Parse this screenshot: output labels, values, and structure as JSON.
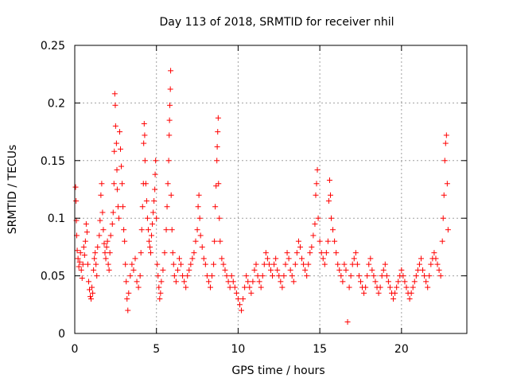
{
  "chart_data": {
    "type": "scatter",
    "title": "Day 113 of 2018, SRMTID for receiver nhil",
    "xlabel": "GPS time / hours",
    "ylabel": "SRMTID / TECUs",
    "xlim": [
      0,
      24
    ],
    "ylim": [
      0,
      0.25
    ],
    "x_ticks": [
      0,
      5,
      10,
      15,
      20
    ],
    "x_tick_labels": [
      "0",
      "5",
      "10",
      "15",
      "20"
    ],
    "y_ticks": [
      0,
      0.05,
      0.1,
      0.15,
      0.2,
      0.25
    ],
    "y_tick_labels": [
      "0",
      "0.05",
      "0.1",
      "0.15",
      "0.2",
      "0.25"
    ],
    "grid": true,
    "marker": "plus",
    "series": [
      {
        "name": "SRMTID",
        "color": "#ff0000",
        "points": [
          [
            0.05,
            0.127
          ],
          [
            0.08,
            0.115
          ],
          [
            0.1,
            0.098
          ],
          [
            0.12,
            0.085
          ],
          [
            0.15,
            0.072
          ],
          [
            0.2,
            0.065
          ],
          [
            0.25,
            0.058
          ],
          [
            0.3,
            0.062
          ],
          [
            0.35,
            0.07
          ],
          [
            0.4,
            0.055
          ],
          [
            0.45,
            0.048
          ],
          [
            0.5,
            0.06
          ],
          [
            0.55,
            0.075
          ],
          [
            0.6,
            0.068
          ],
          [
            0.65,
            0.08
          ],
          [
            0.7,
            0.095
          ],
          [
            0.75,
            0.088
          ],
          [
            0.8,
            0.06
          ],
          [
            0.85,
            0.045
          ],
          [
            0.9,
            0.038
          ],
          [
            0.95,
            0.032
          ],
          [
            1.0,
            0.03
          ],
          [
            1.05,
            0.04
          ],
          [
            1.1,
            0.035
          ],
          [
            1.15,
            0.055
          ],
          [
            1.2,
            0.065
          ],
          [
            1.25,
            0.07
          ],
          [
            1.3,
            0.06
          ],
          [
            1.35,
            0.05
          ],
          [
            1.4,
            0.075
          ],
          [
            1.5,
            0.085
          ],
          [
            1.55,
            0.098
          ],
          [
            1.6,
            0.12
          ],
          [
            1.65,
            0.13
          ],
          [
            1.7,
            0.105
          ],
          [
            1.75,
            0.09
          ],
          [
            1.8,
            0.078
          ],
          [
            1.85,
            0.07
          ],
          [
            1.9,
            0.065
          ],
          [
            1.95,
            0.075
          ],
          [
            2.0,
            0.08
          ],
          [
            2.05,
            0.06
          ],
          [
            2.1,
            0.055
          ],
          [
            2.15,
            0.07
          ],
          [
            2.2,
            0.085
          ],
          [
            2.3,
            0.095
          ],
          [
            2.35,
            0.105
          ],
          [
            2.4,
            0.13
          ],
          [
            2.42,
            0.158
          ],
          [
            2.45,
            0.208
          ],
          [
            2.48,
            0.198
          ],
          [
            2.5,
            0.18
          ],
          [
            2.55,
            0.165
          ],
          [
            2.58,
            0.142
          ],
          [
            2.6,
            0.125
          ],
          [
            2.65,
            0.11
          ],
          [
            2.7,
            0.1
          ],
          [
            2.75,
            0.175
          ],
          [
            2.8,
            0.16
          ],
          [
            2.85,
            0.145
          ],
          [
            2.9,
            0.13
          ],
          [
            2.95,
            0.11
          ],
          [
            3.0,
            0.09
          ],
          [
            3.05,
            0.08
          ],
          [
            3.1,
            0.06
          ],
          [
            3.15,
            0.045
          ],
          [
            3.2,
            0.03
          ],
          [
            3.25,
            0.02
          ],
          [
            3.3,
            0.035
          ],
          [
            3.4,
            0.05
          ],
          [
            3.5,
            0.06
          ],
          [
            3.6,
            0.055
          ],
          [
            3.7,
            0.065
          ],
          [
            3.8,
            0.045
          ],
          [
            3.9,
            0.04
          ],
          [
            4.0,
            0.05
          ],
          [
            4.05,
            0.07
          ],
          [
            4.1,
            0.09
          ],
          [
            4.15,
            0.11
          ],
          [
            4.2,
            0.13
          ],
          [
            4.22,
            0.165
          ],
          [
            4.25,
            0.182
          ],
          [
            4.28,
            0.172
          ],
          [
            4.3,
            0.15
          ],
          [
            4.35,
            0.13
          ],
          [
            4.4,
            0.115
          ],
          [
            4.45,
            0.1
          ],
          [
            4.5,
            0.09
          ],
          [
            4.55,
            0.08
          ],
          [
            4.6,
            0.075
          ],
          [
            4.65,
            0.07
          ],
          [
            4.7,
            0.085
          ],
          [
            4.75,
            0.095
          ],
          [
            4.8,
            0.105
          ],
          [
            4.85,
            0.115
          ],
          [
            4.9,
            0.125
          ],
          [
            4.92,
            0.138
          ],
          [
            4.95,
            0.15
          ],
          [
            5.0,
            0.1
          ],
          [
            5.05,
            0.06
          ],
          [
            5.1,
            0.05
          ],
          [
            5.15,
            0.04
          ],
          [
            5.2,
            0.03
          ],
          [
            5.25,
            0.035
          ],
          [
            5.3,
            0.045
          ],
          [
            5.4,
            0.055
          ],
          [
            5.5,
            0.07
          ],
          [
            5.6,
            0.09
          ],
          [
            5.65,
            0.11
          ],
          [
            5.7,
            0.13
          ],
          [
            5.75,
            0.15
          ],
          [
            5.78,
            0.172
          ],
          [
            5.8,
            0.185
          ],
          [
            5.82,
            0.198
          ],
          [
            5.85,
            0.212
          ],
          [
            5.87,
            0.228
          ],
          [
            5.9,
            0.12
          ],
          [
            5.95,
            0.09
          ],
          [
            6.0,
            0.07
          ],
          [
            6.05,
            0.06
          ],
          [
            6.1,
            0.05
          ],
          [
            6.2,
            0.045
          ],
          [
            6.3,
            0.055
          ],
          [
            6.4,
            0.065
          ],
          [
            6.5,
            0.06
          ],
          [
            6.6,
            0.05
          ],
          [
            6.7,
            0.045
          ],
          [
            6.8,
            0.04
          ],
          [
            6.9,
            0.05
          ],
          [
            7.0,
            0.055
          ],
          [
            7.1,
            0.06
          ],
          [
            7.2,
            0.065
          ],
          [
            7.3,
            0.07
          ],
          [
            7.4,
            0.08
          ],
          [
            7.5,
            0.09
          ],
          [
            7.55,
            0.11
          ],
          [
            7.6,
            0.12
          ],
          [
            7.65,
            0.1
          ],
          [
            7.7,
            0.085
          ],
          [
            7.8,
            0.075
          ],
          [
            7.9,
            0.065
          ],
          [
            8.0,
            0.06
          ],
          [
            8.1,
            0.05
          ],
          [
            8.2,
            0.045
          ],
          [
            8.3,
            0.04
          ],
          [
            8.4,
            0.05
          ],
          [
            8.5,
            0.06
          ],
          [
            8.55,
            0.08
          ],
          [
            8.6,
            0.11
          ],
          [
            8.65,
            0.128
          ],
          [
            8.7,
            0.15
          ],
          [
            8.72,
            0.162
          ],
          [
            8.75,
            0.175
          ],
          [
            8.78,
            0.187
          ],
          [
            8.8,
            0.13
          ],
          [
            8.85,
            0.1
          ],
          [
            8.9,
            0.08
          ],
          [
            9.0,
            0.065
          ],
          [
            9.1,
            0.06
          ],
          [
            9.2,
            0.055
          ],
          [
            9.3,
            0.05
          ],
          [
            9.4,
            0.045
          ],
          [
            9.5,
            0.04
          ],
          [
            9.6,
            0.05
          ],
          [
            9.7,
            0.045
          ],
          [
            9.8,
            0.04
          ],
          [
            9.9,
            0.035
          ],
          [
            10.0,
            0.03
          ],
          [
            10.1,
            0.025
          ],
          [
            10.2,
            0.02
          ],
          [
            10.3,
            0.03
          ],
          [
            10.4,
            0.04
          ],
          [
            10.5,
            0.05
          ],
          [
            10.6,
            0.045
          ],
          [
            10.7,
            0.04
          ],
          [
            10.8,
            0.035
          ],
          [
            10.9,
            0.045
          ],
          [
            11.0,
            0.055
          ],
          [
            11.1,
            0.06
          ],
          [
            11.2,
            0.05
          ],
          [
            11.3,
            0.045
          ],
          [
            11.4,
            0.04
          ],
          [
            11.5,
            0.05
          ],
          [
            11.6,
            0.06
          ],
          [
            11.7,
            0.07
          ],
          [
            11.8,
            0.065
          ],
          [
            11.9,
            0.06
          ],
          [
            12.0,
            0.055
          ],
          [
            12.1,
            0.05
          ],
          [
            12.2,
            0.06
          ],
          [
            12.3,
            0.065
          ],
          [
            12.4,
            0.055
          ],
          [
            12.5,
            0.05
          ],
          [
            12.6,
            0.045
          ],
          [
            12.7,
            0.04
          ],
          [
            12.8,
            0.05
          ],
          [
            12.9,
            0.06
          ],
          [
            13.0,
            0.07
          ],
          [
            13.1,
            0.065
          ],
          [
            13.2,
            0.055
          ],
          [
            13.3,
            0.05
          ],
          [
            13.4,
            0.045
          ],
          [
            13.5,
            0.06
          ],
          [
            13.6,
            0.07
          ],
          [
            13.7,
            0.08
          ],
          [
            13.8,
            0.075
          ],
          [
            13.9,
            0.065
          ],
          [
            14.0,
            0.06
          ],
          [
            14.1,
            0.055
          ],
          [
            14.2,
            0.05
          ],
          [
            14.3,
            0.06
          ],
          [
            14.4,
            0.07
          ],
          [
            14.5,
            0.075
          ],
          [
            14.6,
            0.085
          ],
          [
            14.7,
            0.095
          ],
          [
            14.75,
            0.12
          ],
          [
            14.8,
            0.13
          ],
          [
            14.85,
            0.142
          ],
          [
            14.9,
            0.1
          ],
          [
            15.0,
            0.08
          ],
          [
            15.1,
            0.07
          ],
          [
            15.2,
            0.065
          ],
          [
            15.3,
            0.06
          ],
          [
            15.4,
            0.07
          ],
          [
            15.5,
            0.08
          ],
          [
            15.55,
            0.115
          ],
          [
            15.6,
            0.133
          ],
          [
            15.65,
            0.12
          ],
          [
            15.7,
            0.1
          ],
          [
            15.8,
            0.09
          ],
          [
            15.9,
            0.08
          ],
          [
            16.0,
            0.07
          ],
          [
            16.1,
            0.06
          ],
          [
            16.2,
            0.055
          ],
          [
            16.3,
            0.05
          ],
          [
            16.4,
            0.045
          ],
          [
            16.5,
            0.06
          ],
          [
            16.6,
            0.055
          ],
          [
            16.7,
            0.01
          ],
          [
            16.8,
            0.04
          ],
          [
            16.9,
            0.05
          ],
          [
            17.0,
            0.06
          ],
          [
            17.1,
            0.065
          ],
          [
            17.2,
            0.07
          ],
          [
            17.3,
            0.06
          ],
          [
            17.4,
            0.05
          ],
          [
            17.5,
            0.045
          ],
          [
            17.6,
            0.04
          ],
          [
            17.7,
            0.035
          ],
          [
            17.8,
            0.04
          ],
          [
            17.9,
            0.05
          ],
          [
            18.0,
            0.06
          ],
          [
            18.1,
            0.065
          ],
          [
            18.2,
            0.055
          ],
          [
            18.3,
            0.05
          ],
          [
            18.4,
            0.045
          ],
          [
            18.5,
            0.04
          ],
          [
            18.6,
            0.035
          ],
          [
            18.7,
            0.04
          ],
          [
            18.8,
            0.05
          ],
          [
            18.9,
            0.055
          ],
          [
            19.0,
            0.06
          ],
          [
            19.1,
            0.05
          ],
          [
            19.2,
            0.045
          ],
          [
            19.3,
            0.04
          ],
          [
            19.4,
            0.035
          ],
          [
            19.5,
            0.03
          ],
          [
            19.6,
            0.035
          ],
          [
            19.7,
            0.04
          ],
          [
            19.8,
            0.045
          ],
          [
            19.9,
            0.05
          ],
          [
            20.0,
            0.055
          ],
          [
            20.1,
            0.05
          ],
          [
            20.2,
            0.045
          ],
          [
            20.3,
            0.04
          ],
          [
            20.4,
            0.035
          ],
          [
            20.5,
            0.03
          ],
          [
            20.6,
            0.035
          ],
          [
            20.7,
            0.04
          ],
          [
            20.8,
            0.045
          ],
          [
            20.9,
            0.05
          ],
          [
            21.0,
            0.055
          ],
          [
            21.1,
            0.06
          ],
          [
            21.2,
            0.065
          ],
          [
            21.3,
            0.055
          ],
          [
            21.4,
            0.05
          ],
          [
            21.5,
            0.045
          ],
          [
            21.6,
            0.04
          ],
          [
            21.7,
            0.05
          ],
          [
            21.8,
            0.06
          ],
          [
            21.9,
            0.065
          ],
          [
            22.0,
            0.07
          ],
          [
            22.1,
            0.065
          ],
          [
            22.2,
            0.06
          ],
          [
            22.3,
            0.055
          ],
          [
            22.4,
            0.05
          ],
          [
            22.5,
            0.08
          ],
          [
            22.55,
            0.1
          ],
          [
            22.6,
            0.12
          ],
          [
            22.65,
            0.15
          ],
          [
            22.7,
            0.165
          ],
          [
            22.75,
            0.172
          ],
          [
            22.8,
            0.13
          ],
          [
            22.85,
            0.09
          ]
        ]
      }
    ]
  }
}
